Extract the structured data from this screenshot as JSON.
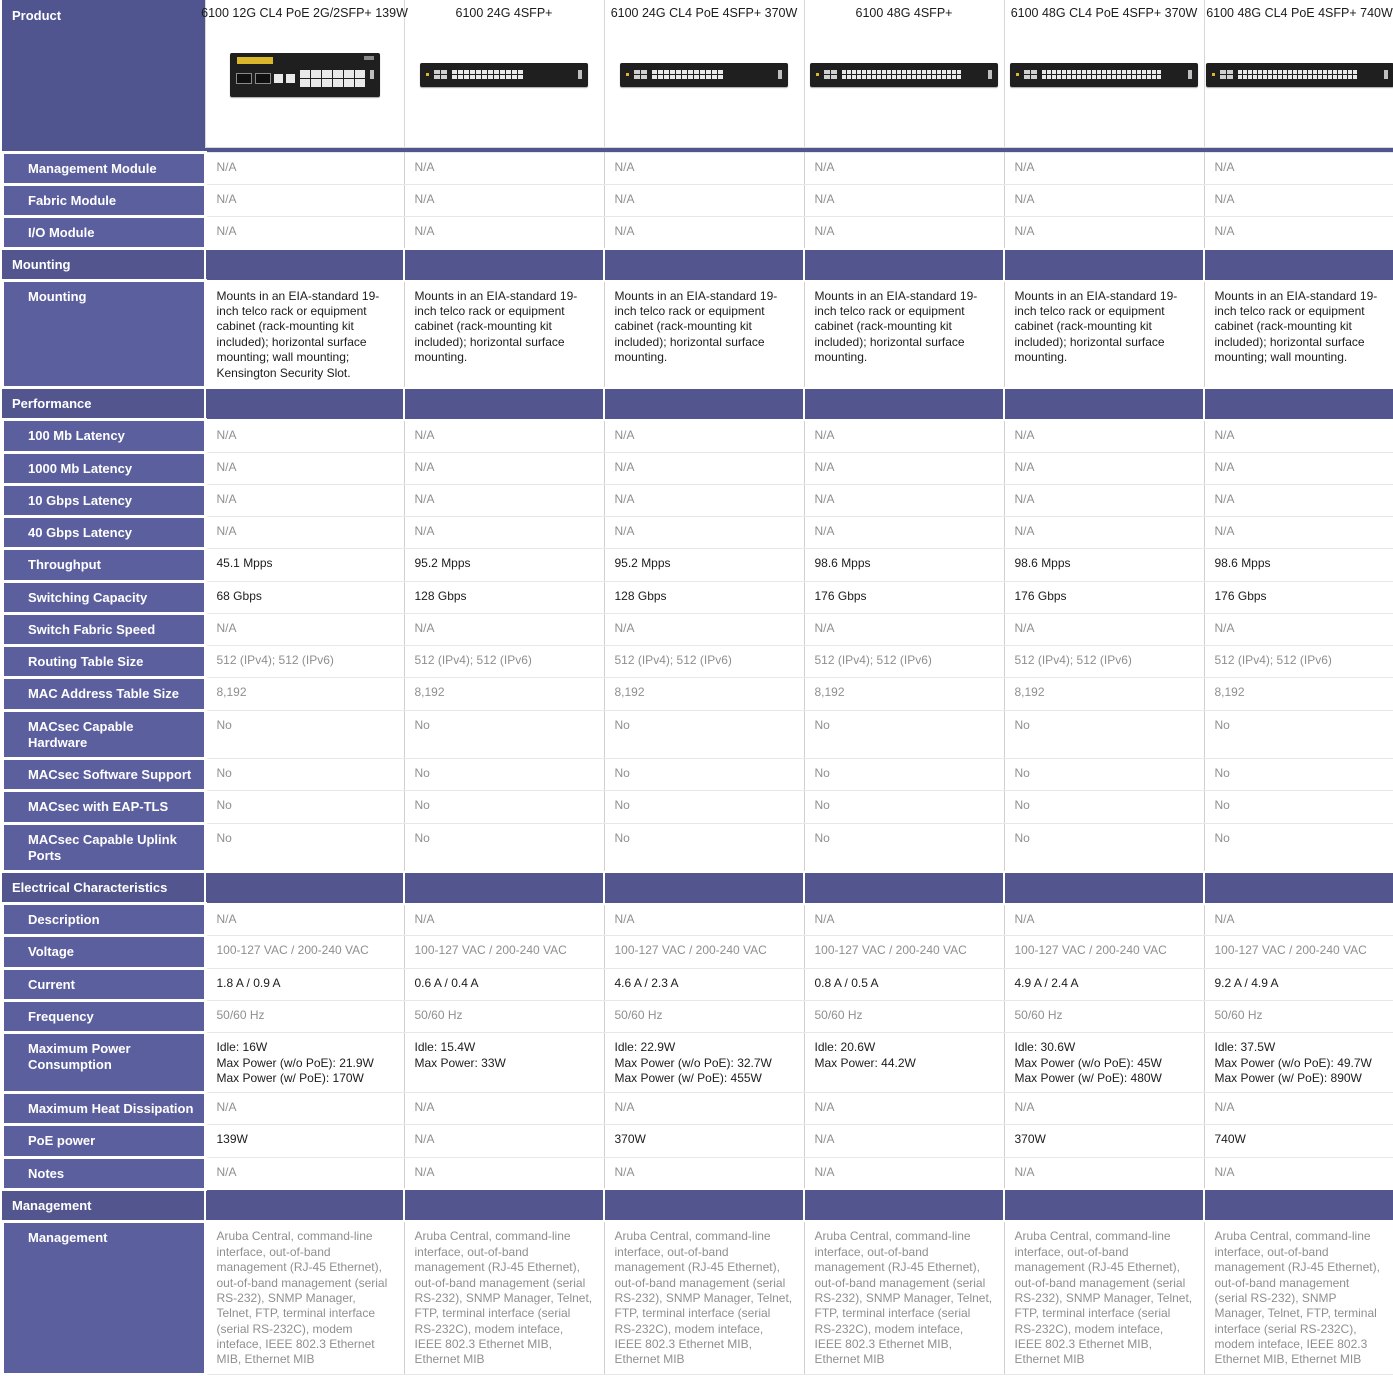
{
  "colors": {
    "header_bg": "#50548f",
    "section_bg": "#53568e",
    "label_bg": "#5c5f9e",
    "text": "#1c1c1c",
    "muted_text": "#8f8f8f",
    "switch_body": "#1f1f1f",
    "accent_yellow": "#d9b62a"
  },
  "table": {
    "corner_label": "Product",
    "products": [
      {
        "name": "6100 12G CL4 PoE 2G/2SFP+ 139W",
        "image": {
          "icon": "switch-12-port-icon",
          "ports": 12
        }
      },
      {
        "name": "6100 24G 4SFP+",
        "image": {
          "icon": "switch-24-port-icon",
          "ports": 24
        }
      },
      {
        "name": "6100 24G CL4 PoE 4SFP+ 370W",
        "image": {
          "icon": "switch-24-port-poe-icon",
          "ports": 24
        }
      },
      {
        "name": "6100 48G 4SFP+",
        "image": {
          "icon": "switch-48-port-icon",
          "ports": 48
        }
      },
      {
        "name": "6100 48G CL4 PoE 4SFP+ 370W",
        "image": {
          "icon": "switch-48-port-poe-icon",
          "ports": 48
        }
      },
      {
        "name": "6100 48G CL4 PoE 4SFP+ 740W",
        "image": {
          "icon": "switch-48-port-poe-740-icon",
          "ports": 48
        }
      }
    ],
    "rows": [
      {
        "type": "data",
        "label": "Management Module",
        "muted": true,
        "values": [
          "N/A",
          "N/A",
          "N/A",
          "N/A",
          "N/A",
          "N/A"
        ]
      },
      {
        "type": "data",
        "label": "Fabric Module",
        "muted": true,
        "values": [
          "N/A",
          "N/A",
          "N/A",
          "N/A",
          "N/A",
          "N/A"
        ]
      },
      {
        "type": "data",
        "label": "I/O Module",
        "muted": true,
        "values": [
          "N/A",
          "N/A",
          "N/A",
          "N/A",
          "N/A",
          "N/A"
        ]
      },
      {
        "type": "section",
        "label": "Mounting"
      },
      {
        "type": "data",
        "label": "Mounting",
        "muted": false,
        "values": [
          "Mounts in an EIA-standard 19-inch telco rack or equipment cabinet (rack-mounting kit included); horizontal surface mounting; wall mounting; Kensington Security Slot.",
          "Mounts in an EIA-standard 19-inch telco rack or equipment cabinet (rack-mounting kit included); horizontal surface mounting.",
          "Mounts in an EIA-standard 19-inch telco rack or equipment cabinet (rack-mounting kit included); horizontal surface mounting.",
          "Mounts in an EIA-standard 19-inch telco rack or equipment cabinet (rack-mounting kit included); horizontal surface mounting.",
          "Mounts in an EIA-standard 19-inch telco rack or equipment cabinet (rack-mounting kit included); horizontal surface mounting.",
          "Mounts in an EIA-standard 19-inch telco rack or equipment cabinet (rack-mounting kit included); horizontal surface mounting; wall mounting."
        ]
      },
      {
        "type": "section",
        "label": "Performance"
      },
      {
        "type": "data",
        "label": "100 Mb Latency",
        "muted": true,
        "values": [
          "N/A",
          "N/A",
          "N/A",
          "N/A",
          "N/A",
          "N/A"
        ]
      },
      {
        "type": "data",
        "label": "1000 Mb Latency",
        "muted": true,
        "values": [
          "N/A",
          "N/A",
          "N/A",
          "N/A",
          "N/A",
          "N/A"
        ]
      },
      {
        "type": "data",
        "label": "10 Gbps Latency",
        "muted": true,
        "values": [
          "N/A",
          "N/A",
          "N/A",
          "N/A",
          "N/A",
          "N/A"
        ]
      },
      {
        "type": "data",
        "label": "40 Gbps Latency",
        "muted": true,
        "values": [
          "N/A",
          "N/A",
          "N/A",
          "N/A",
          "N/A",
          "N/A"
        ]
      },
      {
        "type": "data",
        "label": "Throughput",
        "muted": false,
        "values": [
          "45.1 Mpps",
          "95.2 Mpps",
          "95.2 Mpps",
          "98.6 Mpps",
          "98.6 Mpps",
          "98.6 Mpps"
        ]
      },
      {
        "type": "data",
        "label": "Switching Capacity",
        "muted": false,
        "values": [
          "68 Gbps",
          "128 Gbps",
          "128 Gbps",
          "176 Gbps",
          "176 Gbps",
          "176 Gbps"
        ]
      },
      {
        "type": "data",
        "label": "Switch Fabric Speed",
        "muted": true,
        "values": [
          "N/A",
          "N/A",
          "N/A",
          "N/A",
          "N/A",
          "N/A"
        ]
      },
      {
        "type": "data",
        "label": "Routing Table Size",
        "muted": true,
        "values": [
          "512 (IPv4); 512 (IPv6)",
          "512 (IPv4); 512 (IPv6)",
          "512 (IPv4); 512 (IPv6)",
          "512 (IPv4); 512 (IPv6)",
          "512 (IPv4); 512 (IPv6)",
          "512 (IPv4); 512 (IPv6)"
        ]
      },
      {
        "type": "data",
        "label": "MAC Address Table Size",
        "muted": true,
        "values": [
          "8,192",
          "8,192",
          "8,192",
          "8,192",
          "8,192",
          "8,192"
        ]
      },
      {
        "type": "data",
        "label": "MACsec Capable Hardware",
        "muted": true,
        "values": [
          "No",
          "No",
          "No",
          "No",
          "No",
          "No"
        ]
      },
      {
        "type": "data",
        "label": "MACsec Software Support",
        "muted": true,
        "values": [
          "No",
          "No",
          "No",
          "No",
          "No",
          "No"
        ]
      },
      {
        "type": "data",
        "label": "MACsec with EAP-TLS",
        "muted": true,
        "values": [
          "No",
          "No",
          "No",
          "No",
          "No",
          "No"
        ]
      },
      {
        "type": "data",
        "label": "MACsec Capable Uplink Ports",
        "muted": true,
        "values": [
          "No",
          "No",
          "No",
          "No",
          "No",
          "No"
        ]
      },
      {
        "type": "section",
        "label": "Electrical Characteristics"
      },
      {
        "type": "data",
        "label": "Description",
        "muted": true,
        "values": [
          "N/A",
          "N/A",
          "N/A",
          "N/A",
          "N/A",
          "N/A"
        ]
      },
      {
        "type": "data",
        "label": "Voltage",
        "muted": true,
        "values": [
          "100-127 VAC / 200-240 VAC",
          "100-127 VAC / 200-240 VAC",
          "100-127 VAC / 200-240 VAC",
          "100-127 VAC / 200-240 VAC",
          "100-127 VAC / 200-240 VAC",
          "100-127 VAC / 200-240 VAC"
        ]
      },
      {
        "type": "data",
        "label": "Current",
        "muted": false,
        "values": [
          "1.8 A / 0.9 A",
          "0.6 A / 0.4 A",
          "4.6 A / 2.3 A",
          "0.8 A / 0.5 A",
          "4.9 A / 2.4 A",
          "9.2 A / 4.9 A"
        ]
      },
      {
        "type": "data",
        "label": "Frequency",
        "muted": true,
        "values": [
          "50/60 Hz",
          "50/60 Hz",
          "50/60 Hz",
          "50/60 Hz",
          "50/60 Hz",
          "50/60 Hz"
        ]
      },
      {
        "type": "data",
        "label": "Maximum Power Consumption",
        "muted": false,
        "values": [
          "Idle: 16W\nMax Power (w/o PoE): 21.9W\nMax Power (w/ PoE): 170W",
          "Idle: 15.4W\nMax Power: 33W",
          "Idle: 22.9W\nMax Power (w/o PoE): 32.7W\nMax Power (w/ PoE): 455W",
          "Idle: 20.6W\nMax Power: 44.2W",
          "Idle: 30.6W\nMax Power (w/o PoE): 45W\nMax Power (w/ PoE): 480W",
          "Idle: 37.5W\nMax Power (w/o PoE): 49.7W\nMax Power (w/ PoE): 890W"
        ]
      },
      {
        "type": "data",
        "label": "Maximum Heat Dissipation",
        "muted": true,
        "values": [
          "N/A",
          "N/A",
          "N/A",
          "N/A",
          "N/A",
          "N/A"
        ]
      },
      {
        "type": "data",
        "label": "PoE power",
        "muted": false,
        "values": [
          "139W",
          "N/A",
          "370W",
          "N/A",
          "370W",
          "740W"
        ]
      },
      {
        "type": "data",
        "label": "Notes",
        "muted": true,
        "values": [
          "N/A",
          "N/A",
          "N/A",
          "N/A",
          "N/A",
          "N/A"
        ]
      },
      {
        "type": "section",
        "label": "Management"
      },
      {
        "type": "data",
        "label": "Management",
        "muted": true,
        "values": [
          "Aruba Central, command-line interface, out-of-band management (RJ-45 Ethernet), out-of-band management (serial RS-232), SNMP Manager, Telnet, FTP, terminal interface (serial RS-232C), modem inteface, IEEE 802.3 Ethernet MIB, Ethernet MIB",
          "Aruba Central, command-line interface, out-of-band management (RJ-45 Ethernet), out-of-band management (serial RS-232), SNMP Manager, Telnet, FTP, terminal interface (serial RS-232C), modem inteface, IEEE 802.3 Ethernet MIB, Ethernet MIB",
          "Aruba Central, command-line interface, out-of-band management (RJ-45 Ethernet), out-of-band management (serial RS-232), SNMP Manager, Telnet, FTP, terminal interface (serial RS-232C), modem inteface, IEEE 802.3 Ethernet MIB, Ethernet MIB",
          "Aruba Central, command-line interface, out-of-band management (RJ-45 Ethernet), out-of-band management (serial RS-232), SNMP Manager, Telnet, FTP, terminal interface (serial RS-232C), modem inteface, IEEE 802.3 Ethernet MIB, Ethernet MIB",
          "Aruba Central, command-line interface, out-of-band management (RJ-45 Ethernet), out-of-band management (serial RS-232), SNMP Manager, Telnet, FTP, terminal interface (serial RS-232C), modem inteface, IEEE 802.3 Ethernet MIB, Ethernet MIB",
          "Aruba Central, command-line interface, out-of-band management (RJ-45 Ethernet), out-of-band management (serial RS-232), SNMP Manager, Telnet, FTP, terminal interface (serial RS-232C), modem inteface, IEEE 802.3 Ethernet MIB, Ethernet MIB"
        ]
      }
    ]
  }
}
